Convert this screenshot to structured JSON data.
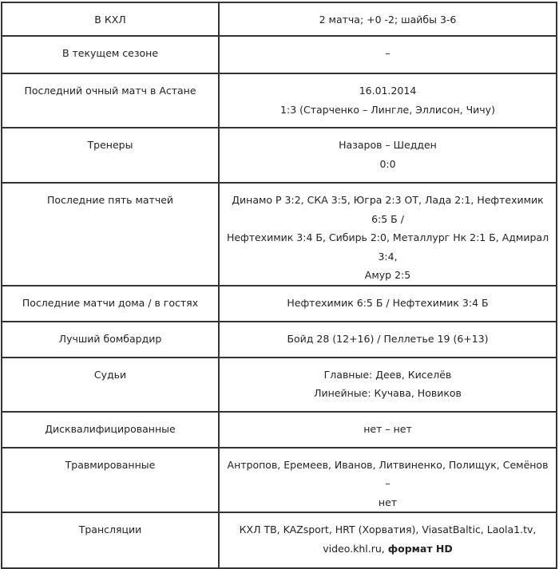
{
  "rows": [
    {
      "label": "В КХЛ",
      "lines": [
        "2 матча; +0 -2; шайбы 3-6"
      ]
    },
    {
      "label": "В текущем сезоне",
      "lines": [
        "–"
      ]
    },
    {
      "label": "Последний очный матч в Астане",
      "lines": [
        "16.01.2014",
        "1:3 (Старченко – Лингле, Эллисон, Чичу)"
      ]
    },
    {
      "label": "Тренеры",
      "lines": [
        "Назаров – Шедден",
        "0:0"
      ]
    },
    {
      "label": "Последние пять матчей",
      "lines": [
        "Динамо Р 3:2, СКА 3:5, Югра 2:3 ОТ, Лада 2:1, Нефтехимик 6:5 Б /",
        "Нефтехимик 3:4 Б, Сибирь 2:0, Металлург Нк 2:1 Б, Адмирал 3:4,",
        "Амур 2:5"
      ]
    },
    {
      "label": "Последние матчи дома / в гостях",
      "lines": [
        "Нефтехимик 6:5 Б / Нефтехимик 3:4 Б"
      ]
    },
    {
      "label": "Лучший бомбардир",
      "lines": [
        "Бойд 28 (12+16) / Пеллетье 19 (6+13)"
      ]
    },
    {
      "label": "Судьи",
      "lines": [
        "Главные: Деев, Киселёв",
        "Линейные: Кучава, Новиков"
      ]
    },
    {
      "label": "Дисквалифицированные",
      "lines": [
        "нет – нет"
      ]
    },
    {
      "label": "Травмированные",
      "lines": [
        "Антропов, Еремеев, Иванов, Литвиненко, Полищук, Семёнов –",
        "нет"
      ]
    },
    {
      "label": "Трансляции",
      "lines": [
        "КХЛ ТВ, KAZsport, HRT (Хорватия), ViasatBaltic, Laola1.tv,",
        "video.khl.ru, "
      ],
      "bold_suffix": "формат HD"
    }
  ]
}
